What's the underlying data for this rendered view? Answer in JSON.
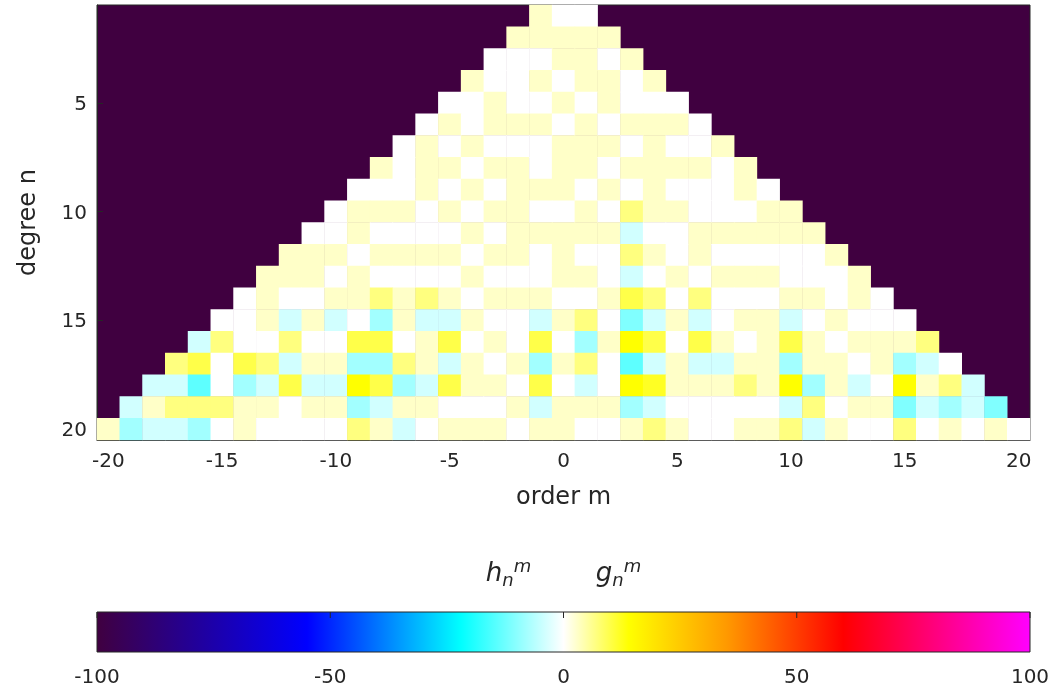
{
  "chart_data": {
    "type": "heatmap",
    "xlabel": "order m",
    "ylabel": "degree n",
    "annotations": [
      "h$_{n}$$^{m}$",
      "g$_{n}$$^{m}$"
    ],
    "categories": [
      "-20",
      null,
      null,
      null,
      null,
      "-15",
      null,
      null,
      null,
      null,
      "-10",
      null,
      null,
      null,
      null,
      "-5",
      null,
      null,
      null,
      null,
      "0",
      null,
      null,
      null,
      null,
      "5",
      null,
      null,
      null,
      null,
      "10",
      null,
      null,
      null,
      null,
      "15",
      null,
      null,
      null,
      null,
      "20"
    ],
    "y_categories": [
      null,
      null,
      null,
      null,
      "5",
      null,
      null,
      null,
      null,
      "10",
      null,
      null,
      null,
      null,
      "15",
      null,
      null,
      null,
      null,
      "20"
    ],
    "clim": [
      -100,
      100
    ],
    "cticks": [
      -100,
      -50,
      0,
      50,
      100
    ],
    "cells": [
      [
        null,
        null,
        null,
        null,
        null,
        null,
        null,
        null,
        null,
        null,
        null,
        null,
        null,
        null,
        null,
        null,
        null,
        null,
        null,
        3,
        0,
        0,
        null,
        null,
        null,
        null,
        null,
        null,
        null,
        null,
        null,
        null,
        null,
        null,
        null,
        null,
        null,
        null,
        null,
        null,
        null
      ],
      [
        null,
        null,
        null,
        null,
        null,
        null,
        null,
        null,
        null,
        null,
        null,
        null,
        null,
        null,
        null,
        null,
        null,
        null,
        3,
        3,
        3,
        3,
        3,
        null,
        null,
        null,
        null,
        null,
        null,
        null,
        null,
        null,
        null,
        null,
        null,
        null,
        null,
        null,
        null,
        null,
        null
      ],
      [
        null,
        null,
        null,
        null,
        null,
        null,
        null,
        null,
        null,
        null,
        null,
        null,
        null,
        null,
        null,
        null,
        null,
        0,
        0,
        0,
        3,
        3,
        0,
        3,
        null,
        null,
        null,
        null,
        null,
        null,
        null,
        null,
        null,
        null,
        null,
        null,
        null,
        null,
        null,
        null,
        null
      ],
      [
        null,
        null,
        null,
        null,
        null,
        null,
        null,
        null,
        null,
        null,
        null,
        null,
        null,
        null,
        null,
        null,
        3,
        0,
        0,
        3,
        0,
        3,
        3,
        0,
        3,
        null,
        null,
        null,
        null,
        null,
        null,
        null,
        null,
        null,
        null,
        null,
        null,
        null,
        null,
        null,
        null
      ],
      [
        null,
        null,
        null,
        null,
        null,
        null,
        null,
        null,
        null,
        null,
        null,
        null,
        null,
        null,
        null,
        0,
        0,
        3,
        0,
        0,
        3,
        0,
        3,
        0,
        0,
        0,
        null,
        null,
        null,
        null,
        null,
        null,
        null,
        null,
        null,
        null,
        null,
        null,
        null,
        null,
        null
      ],
      [
        null,
        null,
        null,
        null,
        null,
        null,
        null,
        null,
        null,
        null,
        null,
        null,
        null,
        null,
        0,
        3,
        0,
        3,
        3,
        3,
        0,
        3,
        0,
        3,
        3,
        3,
        0,
        null,
        null,
        null,
        null,
        null,
        null,
        null,
        null,
        null,
        null,
        null,
        null,
        null,
        null
      ],
      [
        null,
        null,
        null,
        null,
        null,
        null,
        null,
        null,
        null,
        null,
        null,
        null,
        null,
        0,
        3,
        0,
        3,
        0,
        0,
        0,
        3,
        3,
        3,
        0,
        3,
        0,
        0,
        3,
        null,
        null,
        null,
        null,
        null,
        null,
        null,
        null,
        null,
        null,
        null,
        null,
        null
      ],
      [
        null,
        null,
        null,
        null,
        null,
        null,
        null,
        null,
        null,
        null,
        null,
        null,
        3,
        0,
        3,
        3,
        0,
        3,
        3,
        0,
        3,
        3,
        0,
        3,
        3,
        3,
        3,
        0,
        3,
        null,
        null,
        null,
        null,
        null,
        null,
        null,
        null,
        null,
        null,
        null,
        null
      ],
      [
        null,
        null,
        null,
        null,
        null,
        null,
        null,
        null,
        null,
        null,
        null,
        0,
        0,
        0,
        3,
        0,
        3,
        0,
        3,
        3,
        3,
        0,
        3,
        0,
        3,
        0,
        0,
        0,
        3,
        0,
        null,
        null,
        null,
        null,
        null,
        null,
        null,
        null,
        null,
        null,
        null
      ],
      [
        null,
        null,
        null,
        null,
        null,
        null,
        null,
        null,
        null,
        null,
        0,
        3,
        3,
        3,
        0,
        3,
        0,
        3,
        3,
        0,
        0,
        3,
        0,
        7,
        3,
        3,
        0,
        0,
        0,
        3,
        3,
        null,
        null,
        null,
        null,
        null,
        null,
        null,
        null,
        null,
        null
      ],
      [
        null,
        null,
        null,
        null,
        null,
        null,
        null,
        null,
        null,
        0,
        0,
        3,
        0,
        0,
        0,
        0,
        3,
        0,
        3,
        3,
        3,
        3,
        3,
        -4,
        0,
        0,
        3,
        3,
        3,
        3,
        3,
        3,
        null,
        null,
        null,
        null,
        null,
        null,
        null,
        null,
        null
      ],
      [
        null,
        null,
        null,
        null,
        null,
        null,
        null,
        null,
        3,
        3,
        3,
        0,
        3,
        3,
        3,
        3,
        0,
        3,
        3,
        0,
        3,
        0,
        0,
        7,
        3,
        0,
        3,
        0,
        0,
        0,
        0,
        0,
        3,
        null,
        null,
        null,
        null,
        null,
        null,
        null,
        null
      ],
      [
        null,
        null,
        null,
        null,
        null,
        null,
        null,
        3,
        3,
        3,
        0,
        3,
        0,
        0,
        0,
        0,
        3,
        0,
        0,
        0,
        3,
        3,
        0,
        -4,
        0,
        3,
        0,
        3,
        3,
        3,
        0,
        0,
        0,
        3,
        null,
        null,
        null,
        null,
        null,
        null,
        null
      ],
      [
        null,
        null,
        null,
        null,
        null,
        null,
        0,
        3,
        0,
        0,
        3,
        3,
        7,
        3,
        7,
        3,
        0,
        3,
        3,
        3,
        0,
        0,
        3,
        10,
        7,
        0,
        7,
        0,
        0,
        0,
        3,
        3,
        0,
        3,
        0,
        null,
        null,
        null,
        null,
        null,
        null
      ],
      [
        null,
        null,
        null,
        null,
        null,
        0,
        0,
        3,
        -4,
        3,
        -4,
        0,
        -8,
        3,
        -4,
        -4,
        3,
        0,
        0,
        -4,
        3,
        7,
        0,
        -11,
        -4,
        3,
        -4,
        0,
        3,
        3,
        -4,
        0,
        3,
        0,
        0,
        0,
        null,
        null,
        null,
        null,
        null
      ],
      [
        null,
        null,
        null,
        null,
        -4,
        7,
        0,
        0,
        7,
        0,
        0,
        10,
        10,
        0,
        3,
        10,
        0,
        3,
        0,
        10,
        0,
        -8,
        3,
        14,
        10,
        0,
        10,
        3,
        0,
        3,
        10,
        3,
        0,
        3,
        3,
        3,
        7,
        null,
        null,
        null,
        null
      ],
      [
        null,
        null,
        null,
        7,
        10,
        0,
        10,
        7,
        -4,
        3,
        3,
        -8,
        -8,
        7,
        3,
        -4,
        3,
        0,
        3,
        -8,
        3,
        7,
        0,
        -14,
        -4,
        3,
        -4,
        -4,
        3,
        3,
        -8,
        3,
        3,
        0,
        3,
        -8,
        -4,
        0,
        null,
        null,
        null
      ],
      [
        null,
        null,
        -4,
        -4,
        -14,
        0,
        -8,
        -4,
        10,
        -4,
        -4,
        14,
        10,
        -8,
        -4,
        10,
        3,
        3,
        0,
        10,
        0,
        -4,
        0,
        14,
        12,
        3,
        3,
        3,
        7,
        3,
        14,
        -8,
        3,
        -4,
        0,
        14,
        3,
        7,
        -4,
        null,
        null
      ],
      [
        null,
        -4,
        3,
        7,
        7,
        7,
        3,
        3,
        0,
        3,
        3,
        -8,
        -4,
        3,
        3,
        0,
        0,
        0,
        3,
        -4,
        3,
        3,
        3,
        -8,
        -4,
        0,
        0,
        0,
        0,
        0,
        -4,
        7,
        0,
        3,
        3,
        -11,
        -4,
        -8,
        -4,
        -11,
        null
      ],
      [
        3,
        -8,
        -4,
        -4,
        -8,
        0,
        3,
        0,
        0,
        0,
        0,
        7,
        3,
        -4,
        0,
        3,
        3,
        3,
        0,
        3,
        3,
        0,
        0,
        3,
        7,
        3,
        0,
        0,
        3,
        3,
        7,
        -4,
        3,
        0,
        0,
        7,
        0,
        3,
        0,
        3,
        0
      ]
    ]
  }
}
